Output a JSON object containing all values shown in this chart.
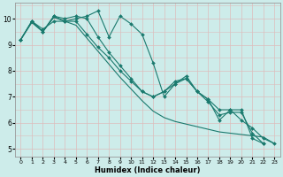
{
  "xlabel": "Humidex (Indice chaleur)",
  "bg_color": "#cdecea",
  "grid_color": "#ddbcbc",
  "line_color": "#1a7a6e",
  "series": [
    {
      "x": [
        0,
        1,
        2,
        3,
        4,
        5,
        6,
        7,
        8,
        9,
        10,
        11,
        12,
        13,
        14,
        15,
        16,
        17,
        18,
        19,
        20,
        21,
        22
      ],
      "y": [
        9.2,
        9.9,
        9.5,
        10.1,
        9.9,
        10.0,
        10.1,
        10.3,
        9.3,
        10.1,
        9.8,
        9.4,
        8.3,
        7.0,
        7.5,
        7.8,
        7.2,
        6.9,
        6.1,
        6.5,
        6.5,
        5.4,
        5.2
      ],
      "marker": true
    },
    {
      "x": [
        0,
        1,
        2,
        3,
        4,
        5,
        6,
        7,
        8,
        9,
        10,
        11,
        12,
        13,
        14,
        15,
        16,
        17,
        18,
        19,
        20,
        21,
        22,
        23
      ],
      "y": [
        9.2,
        9.85,
        9.5,
        10.05,
        9.9,
        9.75,
        9.25,
        8.75,
        8.25,
        7.75,
        7.3,
        6.85,
        6.45,
        6.2,
        6.05,
        5.95,
        5.85,
        5.75,
        5.65,
        5.6,
        5.55,
        5.5,
        5.45,
        5.2
      ],
      "marker": false
    },
    {
      "x": [
        0,
        1,
        2,
        3,
        4,
        5,
        6,
        7,
        8,
        9,
        10,
        11,
        12,
        13,
        14,
        15,
        16,
        17,
        18,
        19,
        20,
        21,
        22,
        23
      ],
      "y": [
        9.2,
        9.9,
        9.6,
        9.9,
        9.9,
        9.9,
        9.4,
        8.9,
        8.5,
        8.0,
        7.6,
        7.2,
        7.0,
        7.2,
        7.6,
        7.7,
        7.2,
        6.9,
        6.5,
        6.5,
        6.1,
        5.8,
        5.4,
        5.2
      ],
      "marker": true
    },
    {
      "x": [
        0,
        1,
        2,
        3,
        4,
        5,
        6,
        7,
        8,
        9,
        10,
        11,
        12,
        13,
        14,
        15,
        16,
        17,
        18,
        19,
        20,
        21,
        22,
        23
      ],
      "y": [
        9.2,
        9.9,
        9.5,
        10.1,
        10.0,
        10.1,
        10.0,
        9.3,
        8.7,
        8.2,
        7.7,
        7.2,
        7.0,
        7.2,
        7.5,
        7.7,
        7.2,
        6.8,
        6.3,
        6.4,
        6.4,
        5.6,
        5.2,
        null
      ],
      "marker": true
    }
  ],
  "xlim": [
    -0.5,
    23.5
  ],
  "ylim": [
    4.7,
    10.6
  ],
  "xticks": [
    0,
    1,
    2,
    3,
    4,
    5,
    6,
    7,
    8,
    9,
    10,
    11,
    12,
    13,
    14,
    15,
    16,
    17,
    18,
    19,
    20,
    21,
    22,
    23
  ],
  "yticks": [
    5,
    6,
    7,
    8,
    9,
    10
  ],
  "xtick_fontsize": 4.5,
  "ytick_fontsize": 5.5,
  "xlabel_fontsize": 6.0,
  "linewidth": 0.8,
  "markersize": 2.0,
  "figsize": [
    3.2,
    2.0
  ],
  "dpi": 100
}
